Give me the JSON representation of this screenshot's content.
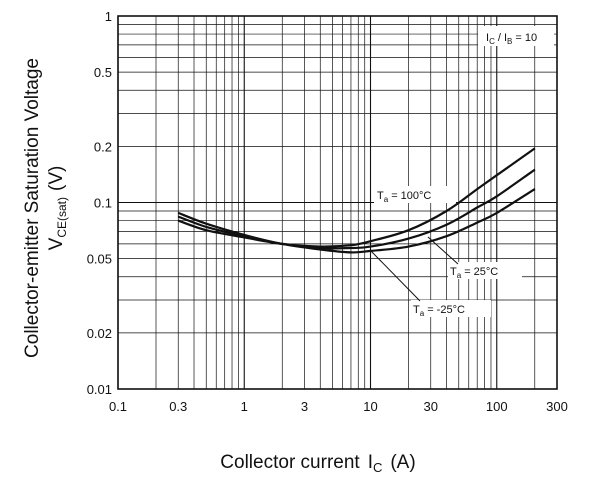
{
  "chart_data": {
    "type": "line",
    "x_scale": "log",
    "y_scale": "log",
    "xlim": [
      0.1,
      300
    ],
    "ylim": [
      0.01,
      1
    ],
    "grid": true,
    "xlabel": {
      "main": "Collector current",
      "symbol": "I",
      "sub": "C",
      "unit": "(A)"
    },
    "ylabel": {
      "line1": "Collector-emitter Saturation Voltage",
      "symbol": "V",
      "sub": "CE(sat)",
      "unit": "(V)"
    },
    "x_ticks": [
      {
        "v": 0.1,
        "label": "0.1"
      },
      {
        "v": 0.3,
        "label": "0.3"
      },
      {
        "v": 1,
        "label": "1"
      },
      {
        "v": 3,
        "label": "3"
      },
      {
        "v": 10,
        "label": "10"
      },
      {
        "v": 30,
        "label": "30"
      },
      {
        "v": 100,
        "label": "100"
      },
      {
        "v": 300,
        "label": "300"
      }
    ],
    "y_ticks": [
      {
        "v": 0.01,
        "label": "0.01"
      },
      {
        "v": 0.02,
        "label": "0.02"
      },
      {
        "v": 0.05,
        "label": "0.05"
      },
      {
        "v": 0.1,
        "label": "0.1"
      },
      {
        "v": 0.2,
        "label": "0.2"
      },
      {
        "v": 0.5,
        "label": "0.5"
      },
      {
        "v": 1,
        "label": "1"
      }
    ],
    "condition": {
      "a": "I",
      "a_sub": "C",
      "sep": "/ I",
      "b_sub": "B",
      "rest": "= 10"
    },
    "series": [
      {
        "name": "Ta = 100°C",
        "label_main": "T",
        "label_sub": "a",
        "label_rest": "= 100°C",
        "x": [
          0.3,
          0.5,
          1,
          2,
          4,
          7,
          10,
          20,
          40,
          70,
          100,
          200
        ],
        "y": [
          0.08,
          0.071,
          0.065,
          0.06,
          0.058,
          0.059,
          0.062,
          0.071,
          0.09,
          0.118,
          0.14,
          0.195
        ]
      },
      {
        "name": "Ta = 25°C",
        "label_main": "T",
        "label_sub": "a",
        "label_rest": "= 25°C",
        "x": [
          0.3,
          0.5,
          1,
          2,
          4,
          7,
          10,
          20,
          40,
          70,
          100,
          200
        ],
        "y": [
          0.084,
          0.074,
          0.066,
          0.06,
          0.057,
          0.057,
          0.058,
          0.064,
          0.076,
          0.094,
          0.108,
          0.15
        ]
      },
      {
        "name": "Ta = -25°C",
        "label_main": "T",
        "label_sub": "a",
        "label_rest": "= -25°C",
        "x": [
          0.3,
          0.5,
          1,
          2,
          4,
          7,
          10,
          20,
          40,
          70,
          100,
          200
        ],
        "y": [
          0.088,
          0.077,
          0.067,
          0.06,
          0.056,
          0.054,
          0.055,
          0.058,
          0.066,
          0.078,
          0.088,
          0.118
        ]
      }
    ]
  }
}
